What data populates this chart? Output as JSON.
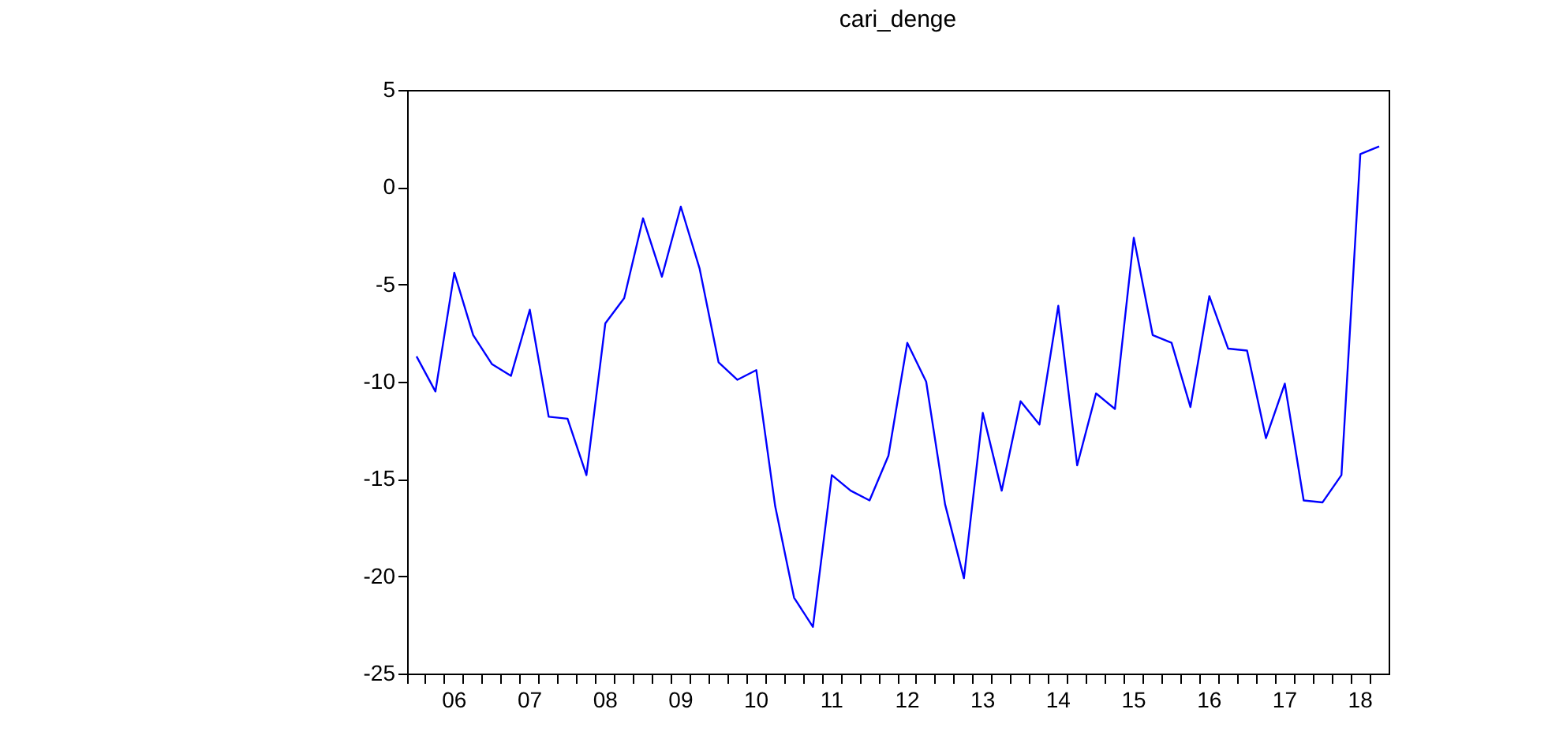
{
  "chart_data": {
    "type": "line",
    "title": "cari_denge",
    "categories": [
      null,
      null,
      "06",
      null,
      null,
      null,
      "07",
      null,
      null,
      null,
      "08",
      null,
      null,
      null,
      "09",
      null,
      null,
      null,
      "10",
      null,
      null,
      null,
      "11",
      null,
      null,
      null,
      "12",
      null,
      null,
      null,
      "13",
      null,
      null,
      null,
      "14",
      null,
      null,
      null,
      "15",
      null,
      null,
      null,
      "16",
      null,
      null,
      null,
      "17",
      null,
      null,
      null,
      "18",
      null
    ],
    "series": [
      {
        "color": "#0000ff",
        "values": [
          -8.7,
          -10.5,
          -4.4,
          -7.6,
          -9.1,
          -9.7,
          -6.3,
          -11.8,
          -11.9,
          -14.8,
          -7.0,
          -5.7,
          -1.6,
          -4.6,
          -1.0,
          -4.2,
          -9.0,
          -9.9,
          -9.4,
          -16.4,
          -21.1,
          -22.6,
          -14.8,
          -15.6,
          -16.1,
          -13.8,
          -8.0,
          -10.0,
          -16.3,
          -20.1,
          -11.6,
          -15.6,
          -11.0,
          -12.2,
          -6.1,
          -14.3,
          -10.6,
          -11.4,
          -2.6,
          -7.6,
          -8.0,
          -11.3,
          -5.6,
          -8.3,
          -8.4,
          -12.9,
          -10.1,
          -16.1,
          -16.2,
          -14.8,
          1.7,
          2.1
        ]
      }
    ],
    "ylim": [
      -25,
      5
    ],
    "yticks": [
      -25,
      -20,
      -15,
      -10,
      -5,
      0,
      5
    ],
    "line_style": "solid"
  }
}
